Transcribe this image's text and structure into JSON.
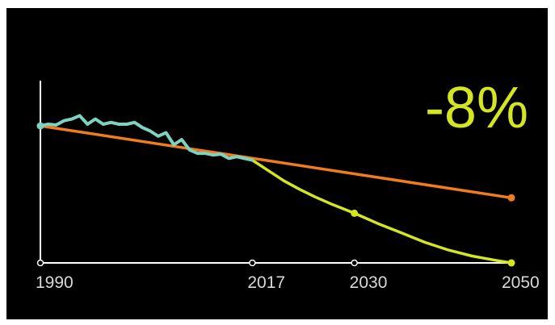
{
  "chart_data": {
    "type": "line",
    "title": "",
    "xlabel": "",
    "ylabel": "",
    "x_ticks": [
      "1990",
      "2017",
      "2030",
      "2050"
    ],
    "xlim": [
      1990,
      2050
    ],
    "ylim": [
      0,
      105
    ],
    "grid": false,
    "legend": "none",
    "annotation": "-8%",
    "series": [
      {
        "key": "historical",
        "color": "#7fd1c0",
        "points": [
          [
            1990,
            80
          ],
          [
            1991,
            81
          ],
          [
            1992,
            80.5
          ],
          [
            1993,
            83
          ],
          [
            1994,
            84
          ],
          [
            1995,
            86
          ],
          [
            1996,
            81
          ],
          [
            1997,
            84
          ],
          [
            1998,
            81
          ],
          [
            1999,
            82
          ],
          [
            2000,
            81
          ],
          [
            2001,
            81
          ],
          [
            2002,
            82
          ],
          [
            2003,
            79
          ],
          [
            2004,
            77
          ],
          [
            2005,
            74
          ],
          [
            2006,
            76
          ],
          [
            2007,
            69
          ],
          [
            2008,
            72
          ],
          [
            2009,
            66
          ],
          [
            2010,
            64
          ],
          [
            2011,
            64
          ],
          [
            2012,
            63
          ],
          [
            2013,
            63.5
          ],
          [
            2014,
            61
          ],
          [
            2015,
            62
          ],
          [
            2016,
            61
          ],
          [
            2017,
            60
          ]
        ]
      },
      {
        "key": "linear-trend",
        "color": "#f07c1e",
        "points": [
          [
            1990,
            80
          ],
          [
            2050,
            38
          ]
        ],
        "markers": [
          2050
        ]
      },
      {
        "key": "reduction-path",
        "color": "#d4e521",
        "points": [
          [
            2017,
            60
          ],
          [
            2019,
            54
          ],
          [
            2021,
            48
          ],
          [
            2023,
            43
          ],
          [
            2025,
            38.5
          ],
          [
            2027,
            34.5
          ],
          [
            2030,
            29
          ],
          [
            2033,
            23
          ],
          [
            2036,
            17.5
          ],
          [
            2039,
            12
          ],
          [
            2042,
            7.5
          ],
          [
            2045,
            4
          ],
          [
            2048,
            1.5
          ],
          [
            2050,
            0
          ]
        ],
        "markers": [
          2030,
          2050
        ]
      }
    ],
    "colors": {
      "axis": "#ffffff",
      "tick_label": "#d9d9d9",
      "annotation": "#d4e521"
    }
  }
}
